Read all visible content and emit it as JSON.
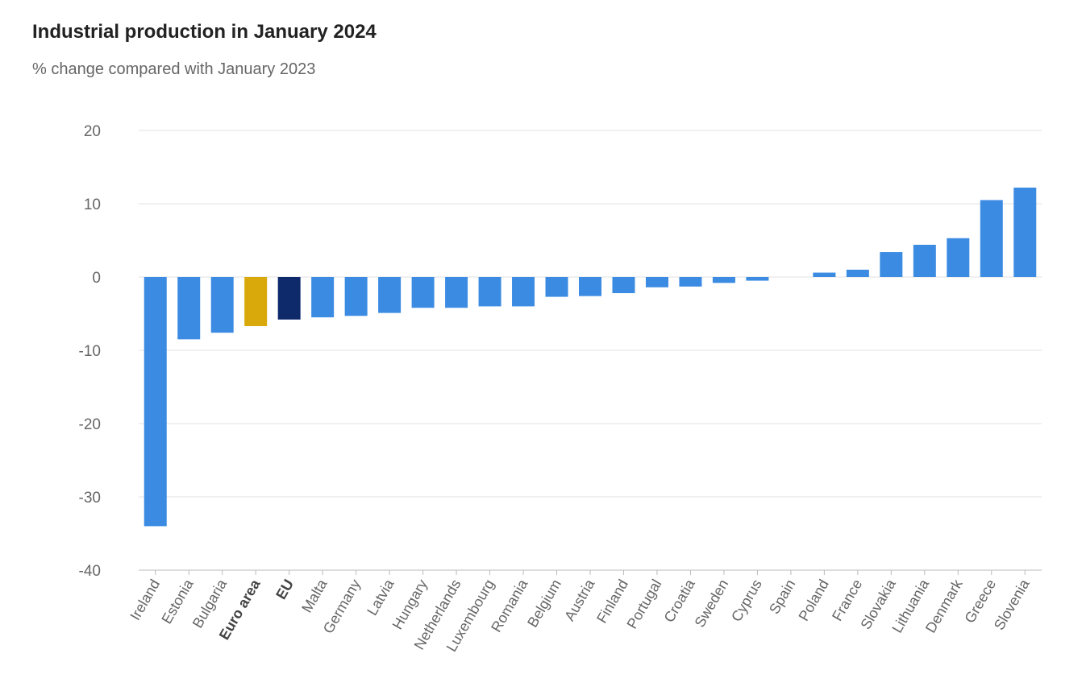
{
  "header": {
    "title": "Industrial production in January 2024",
    "subtitle": "% change compared with January 2023"
  },
  "colors": {
    "default": "#3b8be3",
    "euro_area": "#d9a90b",
    "eu": "#0e2a6b",
    "grid": "#e2e2e2",
    "axis": "#bbbbbb"
  },
  "chart_data": {
    "type": "bar",
    "title": "Industrial production in January 2024",
    "subtitle": "% change compared with January 2023",
    "ylim": [
      -40,
      20
    ],
    "yticks": [
      20,
      10,
      0,
      -10,
      -20,
      -30,
      -40
    ],
    "grid": true,
    "categories": [
      "Ireland",
      "Estonia",
      "Bulgaria",
      "Euro area",
      "EU",
      "Malta",
      "Germany",
      "Latvia",
      "Hungary",
      "Netherlands",
      "Luxembourg",
      "Romania",
      "Belgium",
      "Austria",
      "Finland",
      "Portugal",
      "Croatia",
      "Sweden",
      "Cyprus",
      "Spain",
      "Poland",
      "France",
      "Slovakia",
      "Lithuania",
      "Denmark",
      "Greece",
      "Slovenia"
    ],
    "values": [
      -34.0,
      -8.5,
      -7.6,
      -6.7,
      -5.8,
      -5.5,
      -5.3,
      -4.9,
      -4.2,
      -4.2,
      -4.0,
      -4.0,
      -2.7,
      -2.6,
      -2.2,
      -1.4,
      -1.3,
      -0.8,
      -0.5,
      0.0,
      0.6,
      1.0,
      3.4,
      4.4,
      5.3,
      10.5,
      12.2
    ],
    "highlight": {
      "Euro area": "euro_area",
      "EU": "eu"
    },
    "bold_labels": [
      "Euro area",
      "EU"
    ]
  }
}
